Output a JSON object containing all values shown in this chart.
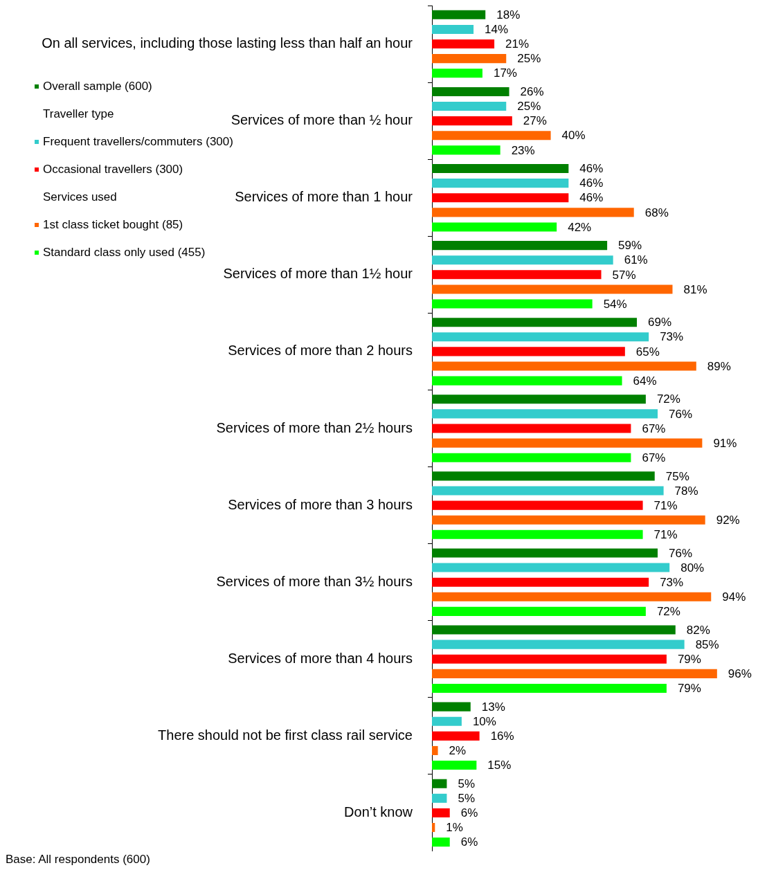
{
  "chart_data": {
    "type": "bar",
    "orientation": "horizontal",
    "categories": [
      "On all services, including those lasting less than half an hour",
      "Services of more than ½ hour",
      "Services of more than 1 hour",
      "Services of more than 1½ hour",
      "Services of more than 2 hours",
      "Services of more than 2½ hours",
      "Services of more than 3 hours",
      "Services of more than 3½ hours",
      "Services of more than 4 hours",
      "There should not be first class rail service",
      "Don’t know"
    ],
    "series": [
      {
        "name": "Overall sample (600)",
        "color": "#008000",
        "values": [
          18,
          26,
          46,
          59,
          69,
          72,
          75,
          76,
          82,
          13,
          5
        ],
        "value_labels": [
          "18%",
          "26%",
          "46%",
          "59%",
          "69%",
          "72%",
          "75%",
          "76%",
          "82%",
          "13%",
          "5%"
        ]
      },
      {
        "name": "Frequent travellers/commuters (300)",
        "color": "#33cccc",
        "values": [
          14,
          25,
          46,
          61,
          73,
          76,
          78,
          80,
          85,
          10,
          5
        ],
        "value_labels": [
          "14%",
          "25%",
          "46%",
          "61%",
          "73%",
          "76%",
          "78%",
          "80%",
          "85%",
          "10%",
          "5%"
        ]
      },
      {
        "name": "Occasional travellers (300)",
        "color": "#ff0000",
        "values": [
          21,
          27,
          46,
          57,
          65,
          67,
          71,
          73,
          79,
          16,
          6
        ],
        "value_labels": [
          "21%",
          "27%",
          "46%",
          "57%",
          "65%",
          "67%",
          "71%",
          "73%",
          "79%",
          "16%",
          "6%"
        ]
      },
      {
        "name": "1st class ticket bought (85)",
        "color": "#ff6600",
        "values": [
          25,
          40,
          68,
          81,
          89,
          91,
          92,
          94,
          96,
          2,
          1
        ],
        "value_labels": [
          "25%",
          "40%",
          "68%",
          "81%",
          "89%",
          "91%",
          "92%",
          "94%",
          "96%",
          "2%",
          "1%"
        ]
      },
      {
        "name": "Standard class only used (455)",
        "color": "#00ff00",
        "values": [
          17,
          23,
          42,
          54,
          64,
          67,
          71,
          72,
          79,
          15,
          6
        ],
        "value_labels": [
          "17%",
          "23%",
          "42%",
          "54%",
          "64%",
          "67%",
          "71%",
          "72%",
          "79%",
          "15%",
          "6%"
        ]
      }
    ],
    "annotations": [
      "Traveller type",
      "Services used",
      "Base: All respondents (600)"
    ],
    "legend": "left",
    "tick_labels": "y"
  }
}
